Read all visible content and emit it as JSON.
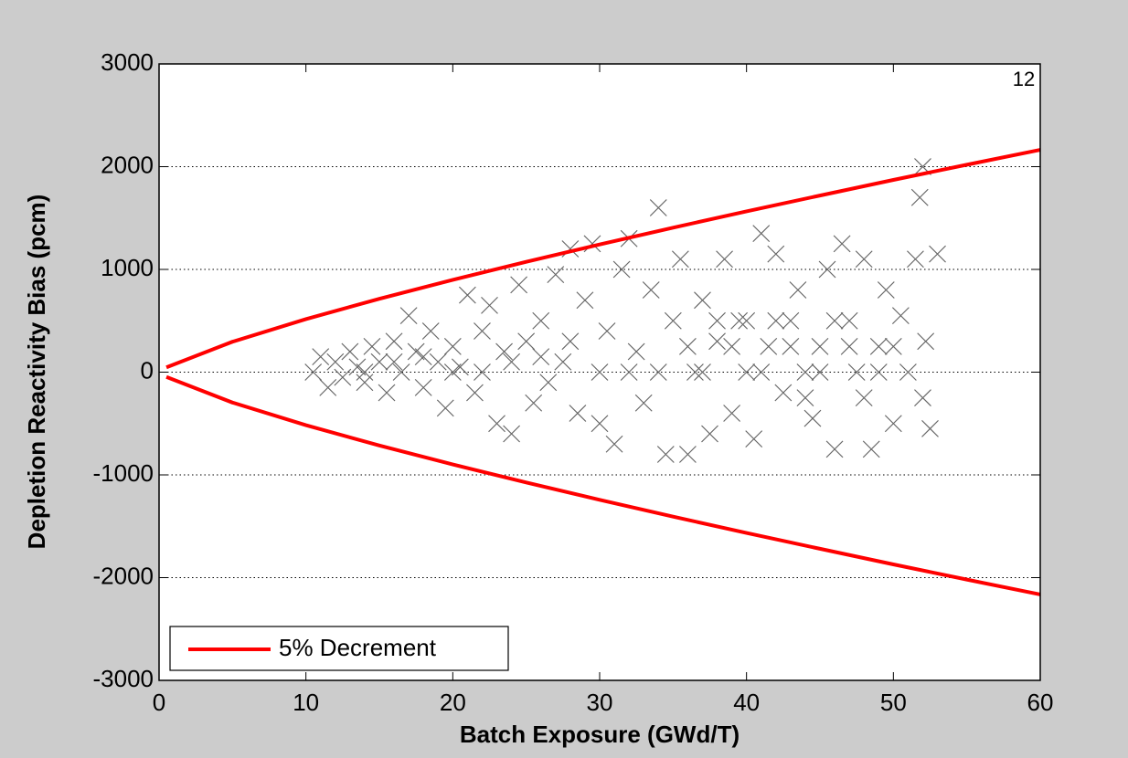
{
  "chart_data": {
    "type": "line",
    "xlabel": "Batch Exposure (GWd/T)",
    "ylabel": "Depletion Reactivity Bias (pcm)",
    "annotation": "12",
    "xlim": [
      0,
      60
    ],
    "xticks": [
      0,
      10,
      20,
      30,
      40,
      50,
      60
    ],
    "ylim": [
      -3000,
      3000
    ],
    "yticks": [
      -3000,
      -2000,
      -1000,
      0,
      1000,
      2000,
      3000
    ],
    "grid": "y",
    "legend": "lower left",
    "series": [
      {
        "name": "5% Decrement",
        "type": "line",
        "color": "#ff0000",
        "x": [
          0.5,
          5,
          10,
          15,
          20,
          25,
          30,
          35,
          40,
          45,
          50,
          55,
          60
        ],
        "values": [
          47,
          296,
          516,
          714,
          898,
          1074,
          1243,
          1406,
          1565,
          1719,
          1871,
          2019,
          2164
        ]
      },
      {
        "type": "line",
        "color": "#ff0000",
        "x": [
          0.5,
          5,
          10,
          15,
          20,
          25,
          30,
          35,
          40,
          45,
          50,
          55,
          60
        ],
        "values": [
          -47,
          -296,
          -516,
          -714,
          -898,
          -1074,
          -1243,
          -1406,
          -1565,
          -1719,
          -1871,
          -2019,
          -2164
        ]
      },
      {
        "type": "scatter",
        "color": "#666666",
        "x": [
          10.5,
          11,
          11.5,
          12,
          12.5,
          13,
          13.5,
          14,
          14.5,
          15,
          15.5,
          16,
          16.5,
          17,
          17.5,
          18,
          18.5,
          19,
          19.5,
          20,
          20.5,
          21,
          21.5,
          22,
          22.5,
          23,
          23.5,
          24,
          24.5,
          25,
          25.5,
          26,
          26.5,
          27,
          27.5,
          28,
          28.5,
          29,
          29.5,
          30,
          30.5,
          31,
          31.5,
          32,
          32.5,
          33,
          33.5,
          34,
          34.5,
          35,
          35.5,
          36,
          36.5,
          37,
          37.5,
          38,
          38.5,
          39,
          39.5,
          40,
          40.5,
          41,
          41.5,
          42,
          42.5,
          43,
          43.5,
          44,
          44.5,
          45,
          45.5,
          46,
          46.5,
          47,
          47.5,
          48,
          48.5,
          49,
          49.5,
          50,
          50.5,
          51,
          51.5,
          52,
          51.8,
          52.2,
          52,
          53,
          52.5,
          37,
          39,
          41,
          43,
          45,
          47,
          49,
          38,
          42,
          46,
          50,
          44,
          48,
          36,
          40,
          34,
          32,
          30,
          28,
          26,
          24,
          22,
          20,
          18,
          16,
          14
        ],
        "values": [
          0,
          150,
          -150,
          100,
          -50,
          200,
          50,
          -100,
          250,
          100,
          -200,
          300,
          0,
          550,
          200,
          -150,
          400,
          100,
          -350,
          250,
          50,
          750,
          -200,
          400,
          650,
          -500,
          200,
          -600,
          850,
          300,
          -300,
          500,
          -100,
          950,
          100,
          1200,
          -400,
          700,
          1250,
          -500,
          400,
          -700,
          1000,
          1300,
          200,
          -300,
          800,
          1600,
          -800,
          500,
          1100,
          -800,
          0,
          700,
          -600,
          300,
          1100,
          -400,
          500,
          0,
          -650,
          1350,
          250,
          1150,
          -200,
          500,
          800,
          0,
          -450,
          250,
          1000,
          -750,
          1250,
          500,
          0,
          1100,
          -750,
          250,
          800,
          -500,
          550,
          0,
          1100,
          2000,
          1700,
          300,
          -250,
          1150,
          -550,
          0,
          250,
          0,
          250,
          0,
          250,
          0,
          500,
          500,
          500,
          250,
          -250,
          -250,
          250,
          500,
          0,
          0,
          0,
          300,
          150,
          100,
          0,
          0,
          150,
          100,
          0
        ]
      }
    ]
  }
}
